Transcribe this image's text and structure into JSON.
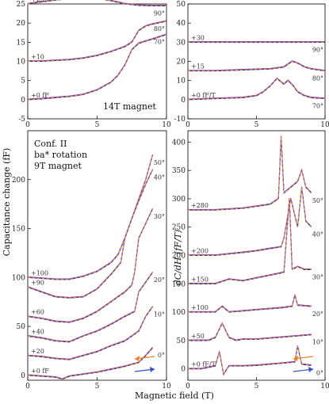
{
  "figure": {
    "xlabel": "Magnetic field (T)",
    "ylabel_left": "Capacitance change (fF)",
    "ylabel_right": "dC/dH (fF/T)",
    "colors": {
      "purple": "#a0409a",
      "navy": "#2a2a9a",
      "yellow": "#f0d020",
      "orange": "#f08020",
      "blue": "#3050c8",
      "arrow_gray": "#999999"
    }
  },
  "chart_data": [
    {
      "id": "top-left",
      "type": "line",
      "annotation": "14T magnet",
      "xlim": [
        0,
        10
      ],
      "ylim": [
        -5,
        25
      ],
      "xticks": [
        0,
        5,
        10
      ],
      "yticks": [
        -5,
        0,
        5,
        10,
        15,
        20,
        25
      ],
      "series": [
        {
          "angle": "90°",
          "offset": "+25",
          "x": [
            0,
            1,
            2,
            3,
            4,
            5,
            6,
            7,
            8,
            9,
            10
          ],
          "y": [
            25,
            25.5,
            26,
            26.3,
            26.5,
            26.5,
            25.8,
            25,
            24.6,
            24.5,
            24.5
          ]
        },
        {
          "angle": "80°",
          "offset": "+10",
          "x": [
            0,
            1,
            2,
            3,
            4,
            5,
            6,
            7,
            7.5,
            8,
            8.5,
            9,
            10
          ],
          "y": [
            10,
            10,
            10.2,
            10.4,
            10.8,
            11.5,
            12.5,
            13.8,
            15,
            18,
            19.2,
            19.7,
            20.5
          ]
        },
        {
          "angle": "70°",
          "offset": "+0 fF",
          "x": [
            0,
            1,
            2,
            3,
            4,
            5,
            6,
            6.5,
            7,
            7.5,
            8,
            9,
            10
          ],
          "y": [
            0,
            0.2,
            0.5,
            0.8,
            1.3,
            2.5,
            4.5,
            6.3,
            9,
            13,
            14.7,
            15.8,
            17
          ]
        }
      ]
    },
    {
      "id": "top-right",
      "type": "line",
      "xlim": [
        0,
        10
      ],
      "ylim": [
        -10,
        50
      ],
      "xticks": [
        0,
        5,
        10
      ],
      "yticks": [
        -10,
        0,
        10,
        20,
        30,
        40,
        50
      ],
      "series": [
        {
          "angle": "90°",
          "offset": "+30",
          "x": [
            0,
            2,
            4,
            6,
            8,
            10
          ],
          "y": [
            30,
            30,
            30,
            30,
            30,
            30
          ]
        },
        {
          "angle": "80°",
          "offset": "+15",
          "x": [
            0,
            2,
            4,
            6,
            7,
            7.6,
            8,
            8.5,
            9,
            10
          ],
          "y": [
            15,
            15,
            15.5,
            16,
            17,
            20,
            19,
            17,
            16,
            15
          ]
        },
        {
          "angle": "70°",
          "offset": "+0 fF/T",
          "x": [
            0,
            2,
            4,
            5,
            5.5,
            6,
            6.5,
            7,
            7.3,
            7.7,
            8,
            8.5,
            9,
            10
          ],
          "y": [
            0,
            0.5,
            1,
            2,
            4,
            7,
            11,
            8,
            10,
            7,
            4,
            2,
            1,
            0.5
          ]
        }
      ]
    },
    {
      "id": "bottom-left",
      "type": "line",
      "annotation": "Conf. II ba* rotation 9T magnet",
      "xlim": [
        0,
        10
      ],
      "ylim": [
        -5,
        250
      ],
      "xticks": [
        0,
        5,
        10
      ],
      "yticks": [
        0,
        50,
        100,
        150,
        200
      ],
      "series": [
        {
          "angle": "50°",
          "offset": "+100",
          "x": [
            0,
            1,
            2,
            3,
            4,
            5,
            6,
            6.5,
            7,
            7.5,
            8,
            8.5,
            9
          ],
          "y": [
            100,
            99,
            98,
            98,
            101,
            106,
            115,
            123,
            140,
            160,
            180,
            200,
            225
          ]
        },
        {
          "angle": "40°",
          "offset": "+90",
          "x": [
            0,
            1,
            2,
            3,
            4,
            5,
            6,
            6.7,
            7,
            7.5,
            8,
            8.5,
            9
          ],
          "y": [
            90,
            85,
            80,
            79,
            80,
            88,
            103,
            115,
            140,
            160,
            178,
            195,
            210
          ]
        },
        {
          "angle": "30°",
          "offset": "+60",
          "x": [
            0,
            1,
            2,
            3,
            4,
            5,
            6,
            7,
            7.5,
            7.7,
            8,
            8.5,
            9
          ],
          "y": [
            60,
            58,
            55,
            54,
            58,
            65,
            75,
            85,
            92,
            105,
            140,
            155,
            170
          ]
        },
        {
          "angle": "20°",
          "offset": "+40",
          "x": [
            0,
            1,
            2,
            3,
            4,
            5,
            6,
            7,
            7.7,
            8,
            8.5,
            9
          ],
          "y": [
            40,
            38,
            35,
            34,
            40,
            45,
            52,
            60,
            65,
            85,
            95,
            105
          ]
        },
        {
          "angle": "10°",
          "offset": "+20",
          "x": [
            0,
            1,
            2,
            3,
            4,
            5,
            6,
            7,
            8,
            8.5,
            9
          ],
          "y": [
            20,
            19,
            17,
            16,
            20,
            24,
            30,
            35,
            45,
            60,
            70
          ]
        },
        {
          "angle": "0°",
          "offset": "+0 fF",
          "x": [
            0,
            1,
            2,
            2.5,
            3,
            4,
            5,
            6,
            7,
            8,
            8.5,
            9
          ],
          "y": [
            0,
            -1,
            -2,
            -4,
            -1,
            1,
            3,
            6,
            9,
            13,
            20,
            28
          ]
        }
      ]
    },
    {
      "id": "bottom-right",
      "type": "line",
      "xlim": [
        0,
        10
      ],
      "ylim": [
        -20,
        420
      ],
      "xticks": [
        0,
        5,
        10
      ],
      "yticks": [
        0,
        50,
        100,
        150,
        200,
        250,
        300,
        350,
        400
      ],
      "series": [
        {
          "angle": "50°",
          "offset": "+280",
          "x": [
            0,
            2,
            4,
            6,
            6.6,
            6.8,
            7,
            7.5,
            8,
            8.3,
            8.6,
            9
          ],
          "y": [
            280,
            280,
            283,
            290,
            300,
            410,
            310,
            320,
            330,
            350,
            320,
            310
          ]
        },
        {
          "angle": "40°",
          "offset": "+200",
          "x": [
            0,
            2,
            4,
            5,
            6,
            6.8,
            7,
            7.5,
            8,
            8.3,
            8.6,
            9
          ],
          "y": [
            200,
            200,
            205,
            208,
            212,
            215,
            230,
            300,
            250,
            320,
            260,
            250
          ]
        },
        {
          "angle": "30°",
          "offset": "+150",
          "x": [
            0,
            2,
            3,
            4,
            5,
            6,
            7,
            7.4,
            7.6,
            8,
            8.5,
            9
          ],
          "y": [
            150,
            150,
            158,
            155,
            160,
            165,
            170,
            300,
            175,
            180,
            175,
            175
          ]
        },
        {
          "angle": "20°",
          "offset": "+100",
          "x": [
            0,
            2,
            2.5,
            3,
            4,
            5,
            6,
            7,
            7.6,
            7.8,
            8,
            9
          ],
          "y": [
            100,
            100,
            110,
            100,
            102,
            104,
            106,
            108,
            110,
            130,
            112,
            110
          ]
        },
        {
          "angle": "10°",
          "offset": "+50",
          "x": [
            0,
            1.5,
            2,
            2.5,
            3,
            3.5,
            4,
            5,
            6,
            7,
            8,
            9
          ],
          "y": [
            50,
            50,
            55,
            80,
            55,
            50,
            52,
            52,
            54,
            56,
            58,
            60
          ]
        },
        {
          "angle": "0°",
          "offset": "+0 fF/T",
          "x": [
            0,
            1,
            2,
            2.3,
            2.6,
            3,
            4,
            5,
            6,
            7,
            7.8,
            8,
            8.3,
            9
          ],
          "y": [
            0,
            0,
            5,
            30,
            -10,
            5,
            5,
            6,
            8,
            10,
            12,
            40,
            8,
            6
          ]
        }
      ]
    }
  ]
}
